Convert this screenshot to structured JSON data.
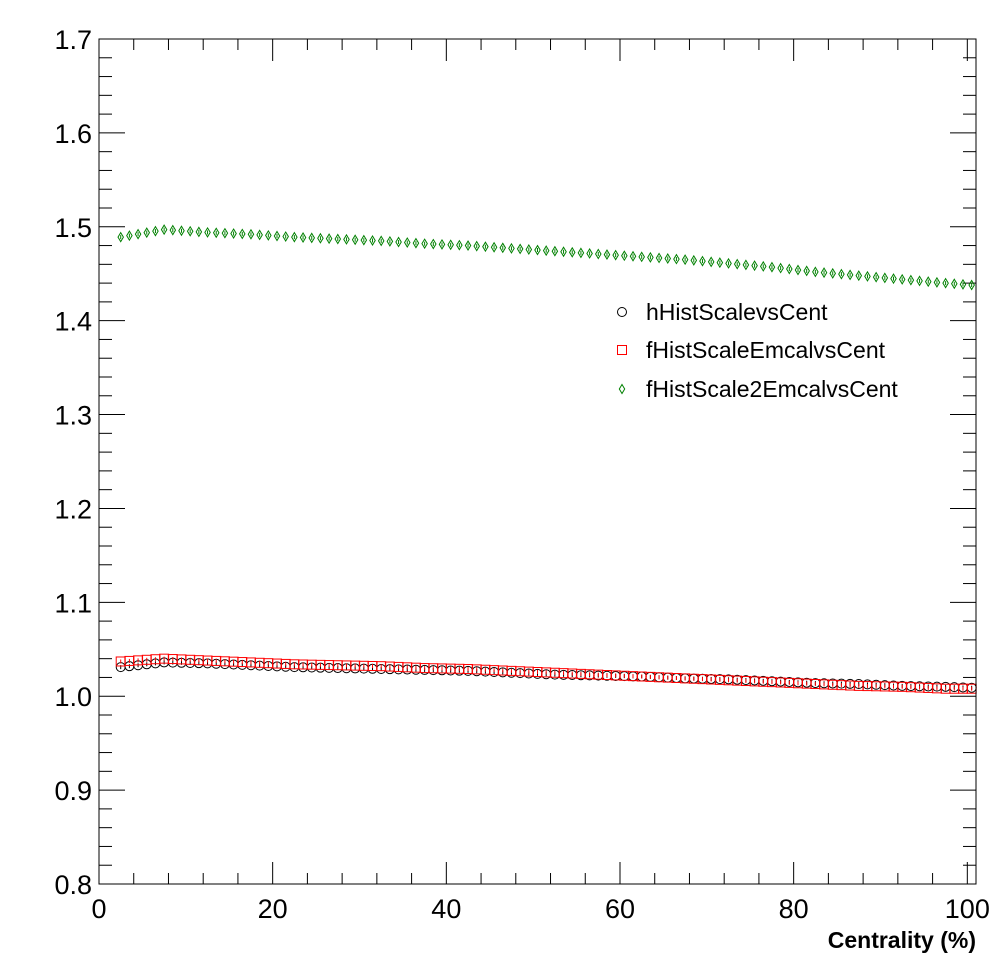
{
  "chart_data": {
    "type": "scatter",
    "title": "",
    "xlabel": "Centrality (%)",
    "ylabel": "",
    "xlim": [
      0,
      101
    ],
    "ylim": [
      0.8,
      1.7
    ],
    "x_ticks": [
      "0",
      "20",
      "40",
      "60",
      "80",
      "100"
    ],
    "y_ticks": [
      "0.8",
      "0.9",
      "1.0",
      "1.1",
      "1.2",
      "1.3",
      "1.4",
      "1.5",
      "1.6",
      "1.7"
    ],
    "grid": false,
    "legend_position": "upper-right",
    "series": [
      {
        "name": "hHistScalevsCent",
        "marker": "circle",
        "color": "#000000",
        "x": [
          2.5,
          7.5,
          12.5,
          17.5,
          22.5,
          27.5,
          32.5,
          37.5,
          42.5,
          47.5,
          52.5,
          57.5,
          62.5,
          67.5,
          72.5,
          77.5,
          82.5,
          87.5,
          92.5,
          97.5,
          100.5
        ],
        "y": [
          1.031,
          1.036,
          1.035,
          1.033,
          1.031,
          1.03,
          1.029,
          1.028,
          1.027,
          1.025,
          1.023,
          1.022,
          1.021,
          1.019,
          1.018,
          1.016,
          1.014,
          1.013,
          1.011,
          1.01,
          1.009
        ]
      },
      {
        "name": "fHistScaleEmcalvsCent",
        "marker": "square",
        "color": "#ff0000",
        "x": [
          2.5,
          7.5,
          12.5,
          17.5,
          22.5,
          27.5,
          32.5,
          37.5,
          42.5,
          47.5,
          52.5,
          57.5,
          62.5,
          67.5,
          72.5,
          77.5,
          82.5,
          87.5,
          92.5,
          97.5,
          100.5
        ],
        "y": [
          1.037,
          1.04,
          1.038,
          1.036,
          1.034,
          1.033,
          1.032,
          1.03,
          1.029,
          1.027,
          1.025,
          1.023,
          1.021,
          1.019,
          1.017,
          1.015,
          1.013,
          1.011,
          1.01,
          1.008,
          1.008
        ]
      },
      {
        "name": "fHistScale2EmcalvsCent",
        "marker": "diamond",
        "color": "#008000",
        "x": [
          2.5,
          7.5,
          12.5,
          17.5,
          22.5,
          27.5,
          32.5,
          37.5,
          42.5,
          47.5,
          52.5,
          57.5,
          62.5,
          67.5,
          72.5,
          77.5,
          82.5,
          87.5,
          92.5,
          97.5,
          100.5
        ],
        "y": [
          1.489,
          1.497,
          1.494,
          1.492,
          1.489,
          1.487,
          1.485,
          1.482,
          1.48,
          1.477,
          1.474,
          1.471,
          1.468,
          1.465,
          1.461,
          1.457,
          1.452,
          1.448,
          1.444,
          1.44,
          1.438
        ]
      }
    ]
  }
}
